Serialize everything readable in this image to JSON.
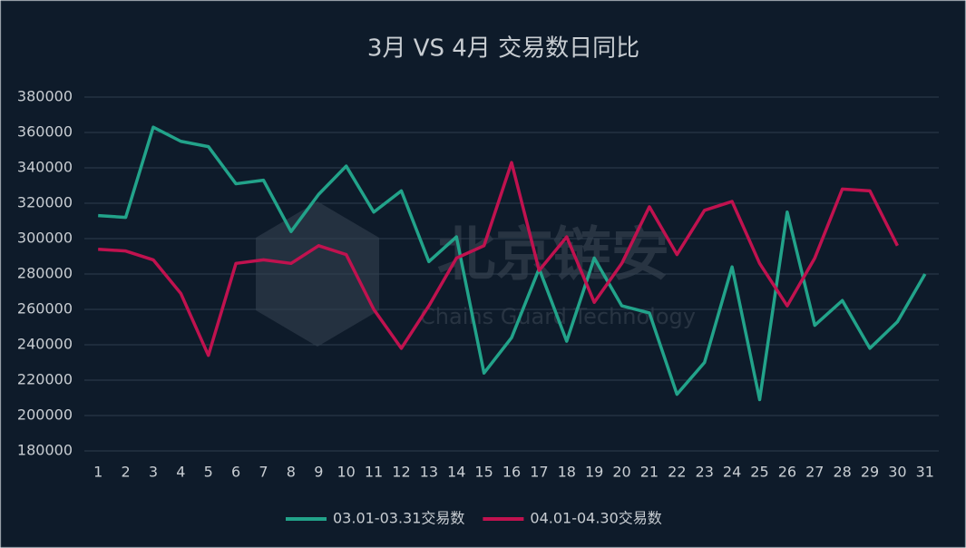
{
  "chart_data": {
    "type": "line",
    "title": "3月 VS 4月 交易数日同比",
    "watermark": {
      "title": "北京链安",
      "subtitle": "Chains Guard Technology"
    },
    "categories": [
      "1",
      "2",
      "3",
      "4",
      "5",
      "6",
      "7",
      "8",
      "9",
      "10",
      "11",
      "12",
      "13",
      "14",
      "15",
      "16",
      "17",
      "18",
      "19",
      "20",
      "21",
      "22",
      "23",
      "24",
      "25",
      "26",
      "27",
      "28",
      "29",
      "30",
      "31"
    ],
    "series": [
      {
        "name": "03.01-03.31交易数",
        "color": "#22a38a",
        "values": [
          313000,
          312000,
          363000,
          355000,
          352000,
          331000,
          333000,
          304000,
          325000,
          341000,
          315000,
          327000,
          287000,
          301000,
          224000,
          244000,
          283000,
          242000,
          289000,
          262000,
          258000,
          212000,
          230000,
          284000,
          209000,
          315000,
          251000,
          265000,
          238000,
          253000,
          280000
        ]
      },
      {
        "name": "04.01-04.30交易数",
        "color": "#c0124f",
        "values": [
          294000,
          293000,
          288000,
          269000,
          234000,
          286000,
          288000,
          286000,
          296000,
          291000,
          260000,
          238000,
          262000,
          289000,
          296000,
          343000,
          282000,
          301000,
          264000,
          286000,
          318000,
          291000,
          316000,
          321000,
          286000,
          262000,
          289000,
          328000,
          327000,
          296000,
          null
        ]
      }
    ],
    "ylim": [
      180000,
      380000
    ],
    "yticks": [
      180000,
      200000,
      220000,
      240000,
      260000,
      280000,
      300000,
      320000,
      340000,
      360000,
      380000
    ],
    "grid": true,
    "legend": "bottom"
  }
}
